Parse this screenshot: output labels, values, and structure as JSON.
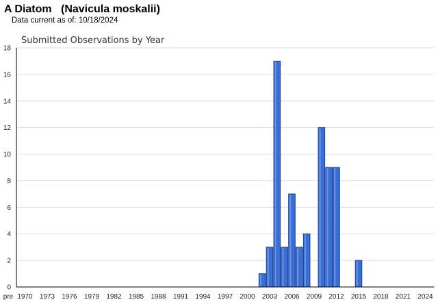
{
  "header": {
    "common_name": "A Diatom",
    "scientific_name": "(Navicula moskalii)",
    "data_current_label": "Data current as of:",
    "data_current_date": "10/18/2024"
  },
  "colors": {
    "bar_fill": "#3a6fd8",
    "bar_stroke": "#1f3f8a",
    "grid": "#dcdcdc",
    "axis": "#000000"
  },
  "chart_data": {
    "type": "bar",
    "title": "Submitted Observations by Year",
    "xlabel": "",
    "ylabel": "",
    "ylim": [
      0,
      18
    ],
    "yticks": [
      0,
      2,
      4,
      6,
      8,
      10,
      12,
      14,
      16,
      18
    ],
    "grid": true,
    "x_tick_labels": [
      "pre",
      "1970",
      "1973",
      "1976",
      "1979",
      "1982",
      "1985",
      "1988",
      "1991",
      "1994",
      "1997",
      "2000",
      "2003",
      "2006",
      "2009",
      "2012",
      "2015",
      "2018",
      "2021",
      "2024"
    ],
    "categories": [
      "2002",
      "2003",
      "2004",
      "2005",
      "2006",
      "2007",
      "2008",
      "2010",
      "2011",
      "2012",
      "2015"
    ],
    "values": [
      1,
      3,
      17,
      3,
      7,
      3,
      4,
      12,
      9,
      9,
      2
    ]
  }
}
